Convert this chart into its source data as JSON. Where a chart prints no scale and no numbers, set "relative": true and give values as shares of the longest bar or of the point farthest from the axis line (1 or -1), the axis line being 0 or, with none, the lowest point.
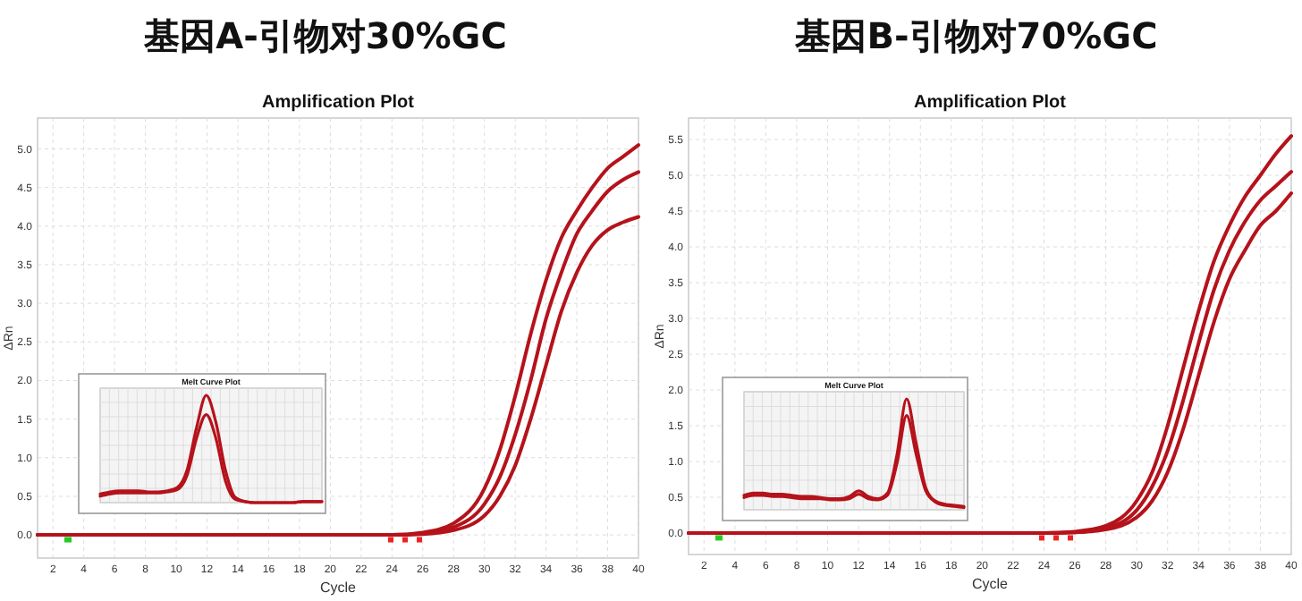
{
  "chart_data": [
    {
      "type": "line",
      "title": "基因A-引物对30%GC",
      "subtitle": "Amplification Plot",
      "xlabel": "Cycle",
      "ylabel": "ΔRn",
      "xlim": [
        1,
        40
      ],
      "ylim": [
        -0.3,
        5.4
      ],
      "xticks": [
        2,
        4,
        6,
        8,
        10,
        12,
        14,
        16,
        18,
        20,
        22,
        24,
        26,
        28,
        30,
        32,
        34,
        36,
        38,
        40
      ],
      "yticks": [
        {
          "value": 0,
          "label": "0.0"
        },
        0.5,
        {
          "value": 1,
          "label": "1.0"
        },
        1.5,
        {
          "value": 2,
          "label": "2.0"
        },
        2.5,
        {
          "value": 3,
          "label": "3.0"
        },
        3.5,
        {
          "value": 4,
          "label": "4.0"
        },
        4.5,
        {
          "value": 5,
          "label": "5.0"
        }
      ],
      "grid": true,
      "marker": "none",
      "line_style": "solid",
      "series": [
        {
          "color": "#b5121b",
          "x": [
            1,
            10,
            20,
            24,
            26,
            28,
            30,
            31,
            32,
            33,
            34,
            35,
            36,
            37,
            38,
            39,
            40
          ],
          "values": [
            0,
            0,
            0,
            0,
            0.03,
            0.15,
            0.6,
            1.1,
            1.8,
            2.6,
            3.3,
            3.85,
            4.2,
            4.5,
            4.75,
            4.9,
            5.05
          ]
        },
        {
          "color": "#b5121b",
          "x": [
            1,
            10,
            20,
            24,
            26,
            28,
            30,
            31,
            32,
            33,
            34,
            35,
            36,
            37,
            38,
            39,
            40
          ],
          "values": [
            0,
            0,
            0,
            0,
            0.02,
            0.1,
            0.4,
            0.75,
            1.3,
            2.0,
            2.8,
            3.4,
            3.9,
            4.2,
            4.45,
            4.6,
            4.7
          ]
        },
        {
          "color": "#b5121b",
          "x": [
            1,
            10,
            20,
            24,
            26,
            28,
            30,
            31,
            32,
            33,
            34,
            35,
            36,
            37,
            38,
            39,
            40
          ],
          "values": [
            0,
            0,
            0,
            0,
            0.01,
            0.06,
            0.25,
            0.5,
            0.9,
            1.5,
            2.2,
            2.9,
            3.4,
            3.75,
            3.95,
            4.05,
            4.12
          ]
        }
      ]
    },
    {
      "type": "line",
      "title": "Melt Curve Plot",
      "relative": true,
      "grid": true,
      "marker": "none",
      "line_style": "solid",
      "categories": [
        null,
        null,
        null,
        null,
        null,
        null,
        null,
        null,
        null,
        null,
        null,
        null,
        null,
        null,
        null,
        null,
        null,
        null,
        null,
        null,
        null,
        null,
        null,
        null
      ],
      "series": [
        {
          "color": "#b5121b",
          "values": [
            0.08,
            0.1,
            0.11,
            0.11,
            0.11,
            0.1,
            0.1,
            0.11,
            0.14,
            0.3,
            0.7,
            1.0,
            0.75,
            0.3,
            0.05,
            0.01,
            0,
            0,
            0,
            0,
            0,
            0.01,
            0.01,
            0.01
          ]
        },
        {
          "color": "#b5121b",
          "values": [
            0.06,
            0.08,
            0.09,
            0.09,
            0.09,
            0.09,
            0.09,
            0.1,
            0.12,
            0.25,
            0.6,
            0.82,
            0.6,
            0.2,
            0.03,
            0.01,
            0,
            0,
            0,
            0,
            0,
            0.01,
            0.01,
            0.01
          ]
        }
      ]
    },
    {
      "type": "line",
      "title": "基因B-引物对70%GC",
      "subtitle": "Amplification Plot",
      "xlabel": "Cycle",
      "ylabel": "ΔRn",
      "xlim": [
        1,
        40
      ],
      "ylim": [
        -0.3,
        5.8
      ],
      "xticks": [
        2,
        4,
        6,
        8,
        10,
        12,
        14,
        16,
        18,
        20,
        22,
        24,
        26,
        28,
        30,
        32,
        34,
        36,
        38,
        40
      ],
      "yticks": [
        {
          "value": 0,
          "label": "0.0"
        },
        0.5,
        {
          "value": 1,
          "label": "1.0"
        },
        1.5,
        {
          "value": 2,
          "label": "2.0"
        },
        2.5,
        {
          "value": 3,
          "label": "3.0"
        },
        3.5,
        {
          "value": 4,
          "label": "4.0"
        },
        4.5,
        {
          "value": 5,
          "label": "5.0"
        },
        5.5
      ],
      "grid": true,
      "marker": "none",
      "line_style": "solid",
      "series": [
        {
          "color": "#b5121b",
          "x": [
            1,
            10,
            20,
            24,
            26,
            28,
            30,
            31,
            32,
            33,
            34,
            35,
            36,
            37,
            38,
            39,
            40
          ],
          "values": [
            0,
            0,
            0,
            0,
            0.02,
            0.1,
            0.45,
            0.85,
            1.5,
            2.3,
            3.1,
            3.8,
            4.3,
            4.7,
            5.0,
            5.3,
            5.55
          ]
        },
        {
          "color": "#b5121b",
          "x": [
            1,
            10,
            20,
            24,
            26,
            28,
            30,
            31,
            32,
            33,
            34,
            35,
            36,
            37,
            38,
            39,
            40
          ],
          "values": [
            0,
            0,
            0,
            0,
            0.01,
            0.07,
            0.32,
            0.65,
            1.15,
            1.85,
            2.65,
            3.4,
            3.95,
            4.35,
            4.65,
            4.85,
            5.05
          ]
        },
        {
          "color": "#b5121b",
          "x": [
            1,
            10,
            20,
            24,
            26,
            28,
            30,
            31,
            32,
            33,
            34,
            35,
            36,
            37,
            38,
            39,
            40
          ],
          "values": [
            0,
            0,
            0,
            0,
            0.01,
            0.05,
            0.22,
            0.45,
            0.85,
            1.45,
            2.2,
            2.95,
            3.55,
            3.95,
            4.3,
            4.5,
            4.75
          ]
        }
      ]
    },
    {
      "type": "line",
      "title": "Melt Curve Plot",
      "relative": true,
      "grid": true,
      "marker": "none",
      "line_style": "solid",
      "categories": [
        null,
        null,
        null,
        null,
        null,
        null,
        null,
        null,
        null,
        null,
        null,
        null,
        null,
        null,
        null,
        null,
        null,
        null,
        null,
        null,
        null,
        null,
        null,
        null
      ],
      "series": [
        {
          "color": "#b5121b",
          "values": [
            0.13,
            0.15,
            0.15,
            0.14,
            0.14,
            0.13,
            0.12,
            0.12,
            0.11,
            0.1,
            0.1,
            0.12,
            0.17,
            0.12,
            0.1,
            0.15,
            0.5,
            1.0,
            0.6,
            0.2,
            0.08,
            0.05,
            0.04,
            0.03
          ]
        },
        {
          "color": "#b5121b",
          "values": [
            0.11,
            0.13,
            0.13,
            0.12,
            0.12,
            0.11,
            0.1,
            0.1,
            0.1,
            0.09,
            0.09,
            0.1,
            0.14,
            0.1,
            0.09,
            0.13,
            0.42,
            0.85,
            0.5,
            0.17,
            0.07,
            0.04,
            0.03,
            0.02
          ]
        }
      ]
    }
  ]
}
